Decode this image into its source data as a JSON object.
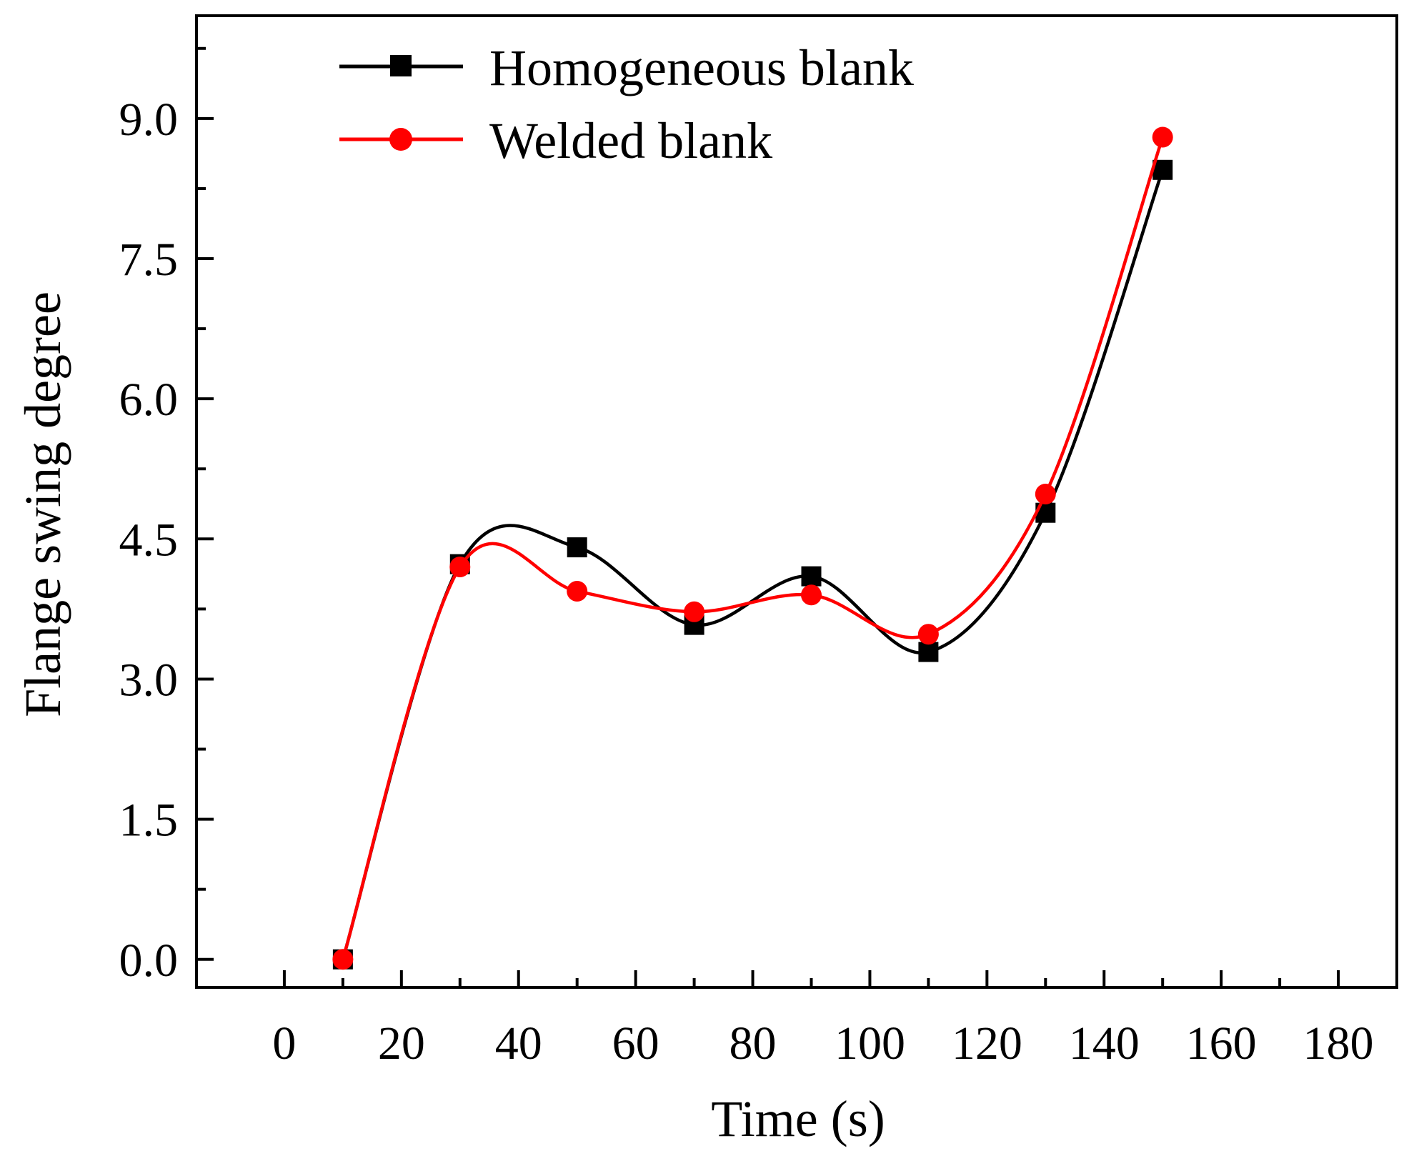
{
  "chart_data": {
    "type": "line",
    "title": "",
    "xlabel": "Time (s)",
    "ylabel": "Flange swing degree",
    "xlim": [
      -15,
      190
    ],
    "ylim": [
      -0.3,
      10.1
    ],
    "xticks": [
      0,
      20,
      40,
      60,
      80,
      100,
      120,
      140,
      160,
      180
    ],
    "yticks": [
      0.0,
      1.5,
      3.0,
      4.5,
      6.0,
      7.5,
      9.0
    ],
    "xtick_labels": [
      "0",
      "20",
      "40",
      "60",
      "80",
      "100",
      "120",
      "140",
      "160",
      "180"
    ],
    "ytick_labels": [
      "0.0",
      "1.5",
      "3.0",
      "4.5",
      "6.0",
      "7.5",
      "9.0"
    ],
    "grid": false,
    "legend_position": "top-left",
    "x": [
      10,
      30,
      50,
      70,
      90,
      110,
      130,
      150
    ],
    "series": [
      {
        "name": "Homogeneous blank",
        "color": "#000000",
        "marker": "square",
        "values": [
          0.0,
          4.23,
          4.41,
          3.58,
          4.1,
          3.29,
          4.78,
          8.45
        ]
      },
      {
        "name": "Welded blank",
        "color": "#ff0000",
        "marker": "circle",
        "values": [
          0.0,
          4.2,
          3.94,
          3.72,
          3.9,
          3.48,
          4.98,
          8.8
        ]
      }
    ]
  }
}
